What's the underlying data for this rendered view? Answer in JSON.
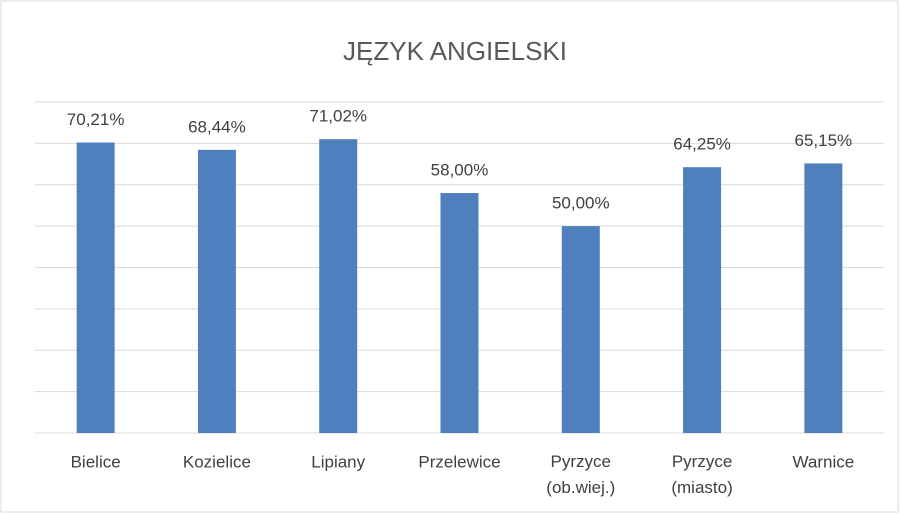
{
  "chart_data": {
    "type": "bar",
    "title": "JĘZYK ANGIELSKI",
    "categories": [
      "Bielice",
      "Kozielice",
      "Lipiany",
      "Przelewice",
      "Pyrzyce (ob.wiej.)",
      "Pyrzyce (miasto)",
      "Warnice"
    ],
    "values": [
      70.21,
      68.44,
      71.02,
      58.0,
      50.0,
      64.25,
      65.15
    ],
    "value_labels": [
      "70,21%",
      "68,44%",
      "71,02%",
      "58,00%",
      "50,00%",
      "64,25%",
      "65,15%"
    ],
    "color": "#4f7fbd",
    "ylim": [
      0,
      80
    ],
    "yticks": [
      0,
      10,
      20,
      30,
      40,
      50,
      60,
      70,
      80
    ],
    "grid": true
  }
}
